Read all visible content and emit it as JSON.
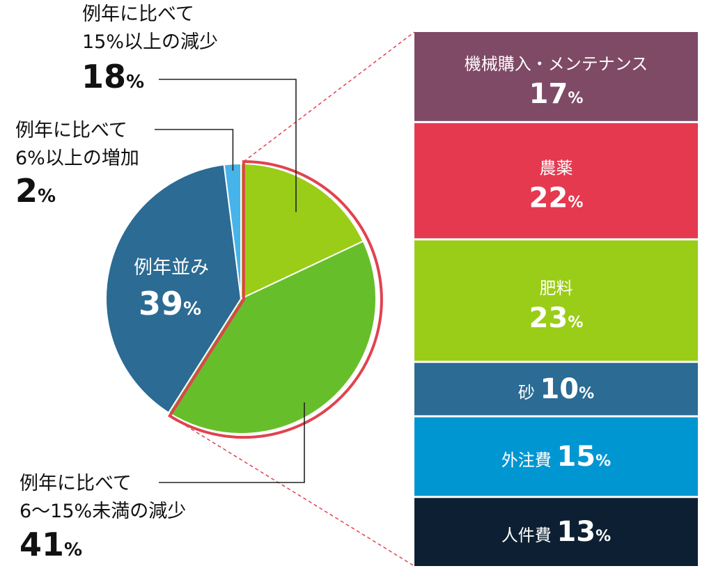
{
  "chart_data": [
    {
      "type": "pie",
      "slices": [
        {
          "lines": [
            "例年に比べて",
            "15%以上の減少"
          ],
          "value": 18,
          "display": "18",
          "unit": "%",
          "color": "#9acd17"
        },
        {
          "lines": [
            "例年に比べて",
            "6〜15%未満の減少"
          ],
          "value": 41,
          "display": "41",
          "unit": "%",
          "color": "#66bf2a"
        },
        {
          "lines": [
            "例年並み"
          ],
          "value": 39,
          "display": "39",
          "unit": "%",
          "color": "#2b6b94"
        },
        {
          "lines": [
            "例年に比べて",
            "6%以上の増加"
          ],
          "value": 2,
          "display": "2",
          "unit": "%",
          "color": "#46b4e8"
        }
      ],
      "highlight": {
        "color": "#e0434f"
      }
    },
    {
      "type": "bar",
      "orientation": "stacked-vertical",
      "segments": [
        {
          "name": "機械購入・メンテナンス",
          "value": 17,
          "display": "17",
          "unit": "%",
          "color": "#7f4a66"
        },
        {
          "name": "農薬",
          "value": 22,
          "display": "22",
          "unit": "%",
          "color": "#e5394f"
        },
        {
          "name": "肥料",
          "value": 23,
          "display": "23",
          "unit": "%",
          "color": "#9acd17"
        },
        {
          "name": "砂",
          "value": 10,
          "display": "10",
          "unit": "%",
          "color": "#2b6b94"
        },
        {
          "name": "外注費",
          "value": 15,
          "display": "15",
          "unit": "%",
          "color": "#0096d2"
        },
        {
          "name": "人件費",
          "value": 13,
          "display": "13",
          "unit": "%",
          "color": "#0d2033"
        }
      ]
    }
  ]
}
